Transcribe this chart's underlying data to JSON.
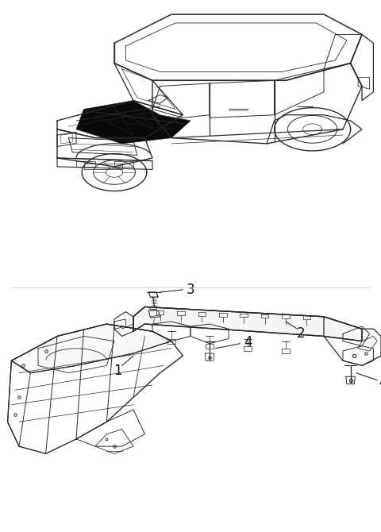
{
  "background_color": "#ffffff",
  "line_color": "#2a2a2a",
  "label_color": "#111111",
  "fig_width": 4.8,
  "fig_height": 6.7,
  "dpi": 100,
  "border_color": "#aaaaaa"
}
